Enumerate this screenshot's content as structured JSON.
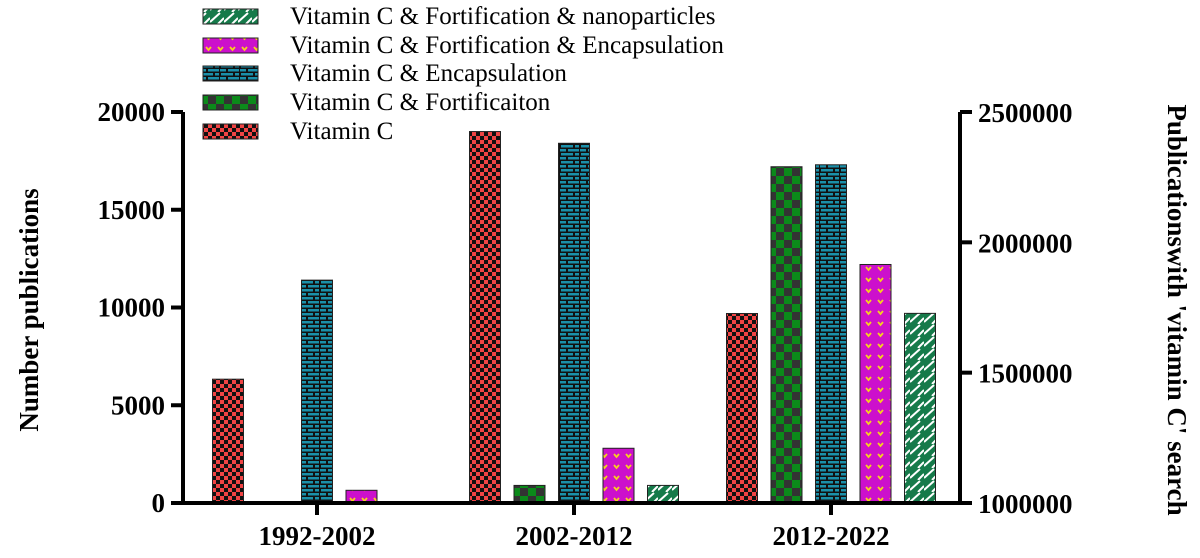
{
  "chart_data": {
    "type": "bar",
    "categories": [
      "1992-2002",
      "2002-2012",
      "2012-2022"
    ],
    "ylabel": "Number publications",
    "ylim": [
      0,
      20000
    ],
    "yticks": [
      "0",
      "5000",
      "10000",
      "15000",
      "20000"
    ],
    "y2label": "Publicationswith 'vitamin  C' search",
    "y2lim": [
      1000000,
      2500000
    ],
    "y2ticks": [
      "1000000",
      "1500000",
      "2000000",
      "2500000"
    ],
    "grid": false,
    "legend_placement": "top-left",
    "series": [
      {
        "name": "Vitamin C",
        "axis": "right",
        "color": "#f04444",
        "pattern": "small-checker",
        "values": [
          1475000,
          2425000,
          1727000
        ]
      },
      {
        "name": "Vitamin C &  Fortificaiton",
        "axis": "left",
        "color": "#0b8a1a",
        "pattern": "large-checker",
        "values": [
          50,
          900,
          17200
        ]
      },
      {
        "name": "Vitamin C & Encapsulation",
        "axis": "left",
        "color": "#1a90aa",
        "pattern": "brick",
        "values": [
          11400,
          18400,
          17300
        ]
      },
      {
        "name": "Vitamin C & Fortification & Encapsulation",
        "axis": "left",
        "color": "#cc10cc",
        "pattern": "dots-v",
        "values": [
          650,
          2800,
          12200
        ]
      },
      {
        "name": "Vitamin C & Fortification & nanoparticles",
        "axis": "left",
        "color": "#167a4a",
        "pattern": "diagonal-dash",
        "values": [
          50,
          900,
          9700
        ]
      }
    ],
    "legend_order": [
      4,
      3,
      2,
      1,
      0
    ]
  }
}
